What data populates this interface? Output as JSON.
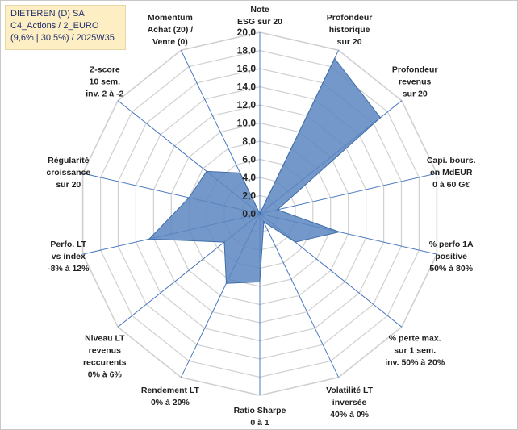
{
  "header": {
    "line1": "DIETEREN (D) SA",
    "line2": "C4_Actions / 2_EURO",
    "line3": "(9,6% | 30,5%) / 2025W35"
  },
  "colors": {
    "fill": "#5b86c0",
    "fill_stroke": "#3f6ea8",
    "grid": "#d0d0d0",
    "spoke": "#4a78c0"
  },
  "chart_data": {
    "type": "radar",
    "rmin": 0,
    "rmax": 20,
    "ticks": [
      "0,0",
      "2,0",
      "4,0",
      "6,0",
      "8,0",
      "10,0",
      "12,0",
      "14,0",
      "16,0",
      "18,0",
      "20,0"
    ],
    "axes": [
      {
        "label": [
          "Note",
          "ESG sur 20"
        ],
        "value": 0
      },
      {
        "label": [
          "Profondeur",
          "historique",
          "sur 20"
        ],
        "value": 19
      },
      {
        "label": [
          "Profondeur",
          "revenus",
          "sur 20"
        ],
        "value": 17
      },
      {
        "label": [
          "Capi. bours.",
          "en MdEUR",
          "0 à 60 G€"
        ],
        "value": 2
      },
      {
        "label": [
          "% perfo 1A",
          "positive",
          "50% à 80%"
        ],
        "value": 9
      },
      {
        "label": [
          "% perte max.",
          "sur 1 sem.",
          "inv. 50% à 20%"
        ],
        "value": 5
      },
      {
        "label": [
          "Volatilité LT",
          "inversée",
          "40% à 0%"
        ],
        "value": 1
      },
      {
        "label": [
          "Ratio Sharpe",
          "0 à 1"
        ],
        "value": 7.5
      },
      {
        "label": [
          "Rendement LT",
          "0% à 20%"
        ],
        "value": 8.5
      },
      {
        "label": [
          "Niveau LT",
          "revenus",
          "reccurents",
          "0% à 6%"
        ],
        "value": 5
      },
      {
        "label": [
          "Perfo. LT",
          "vs index",
          "-8% à 12%"
        ],
        "value": 12.5
      },
      {
        "label": [
          "Régularité",
          "croissance",
          "sur 20"
        ],
        "value": 8
      },
      {
        "label": [
          "Z-score",
          "10 sem.",
          "inv. 2 à -2"
        ],
        "value": 7.5
      },
      {
        "label": [
          "Momentum",
          "Achat (20) /",
          "Vente (0)"
        ],
        "value": 5
      }
    ]
  }
}
